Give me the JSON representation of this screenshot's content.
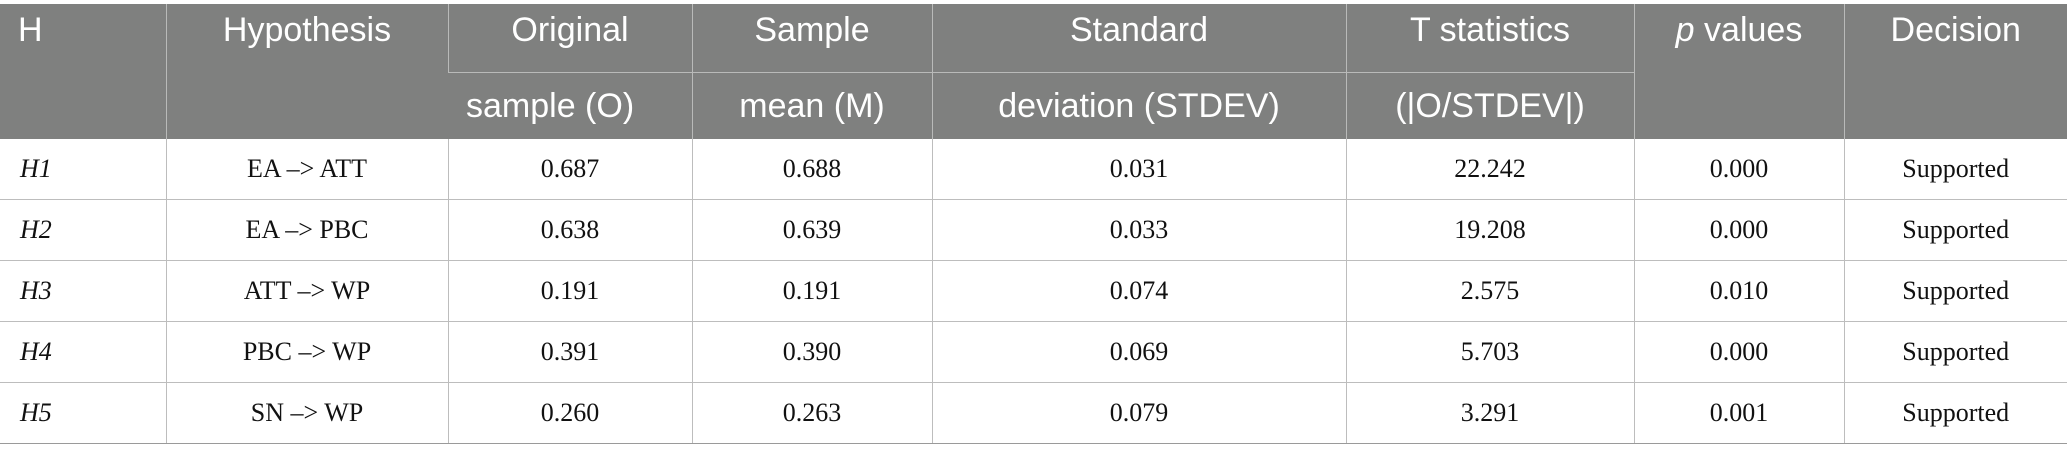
{
  "header": {
    "h": "H",
    "hypothesis": "Hypothesis",
    "original_1": "Original",
    "original_2": "sample (O)",
    "sample_1": "Sample",
    "sample_2": "mean (M)",
    "std_1": "Standard",
    "std_2": "deviation (STDEV)",
    "t_1": "T statistics",
    "t_2": "(|O/STDEV|)",
    "p_italic": "p",
    "p_rest": " values",
    "decision": "Decision"
  },
  "rows": [
    {
      "h": "H1",
      "hypothesis": "EA –> ATT",
      "original": "0.687",
      "mean": "0.688",
      "stdev": "0.031",
      "t": "22.242",
      "p": "0.000",
      "decision": "Supported"
    },
    {
      "h": "H2",
      "hypothesis": "EA –> PBC",
      "original": "0.638",
      "mean": "0.639",
      "stdev": "0.033",
      "t": "19.208",
      "p": "0.000",
      "decision": "Supported"
    },
    {
      "h": "H3",
      "hypothesis": "ATT –> WP",
      "original": "0.191",
      "mean": "0.191",
      "stdev": "0.074",
      "t": "2.575",
      "p": "0.010",
      "decision": "Supported"
    },
    {
      "h": "H4",
      "hypothesis": "PBC –> WP",
      "original": "0.391",
      "mean": "0.390",
      "stdev": "0.069",
      "t": "5.703",
      "p": "0.000",
      "decision": "Supported"
    },
    {
      "h": "H5",
      "hypothesis": "SN –> WP",
      "original": "0.260",
      "mean": "0.263",
      "stdev": "0.079",
      "t": "3.291",
      "p": "0.001",
      "decision": "Supported"
    }
  ]
}
